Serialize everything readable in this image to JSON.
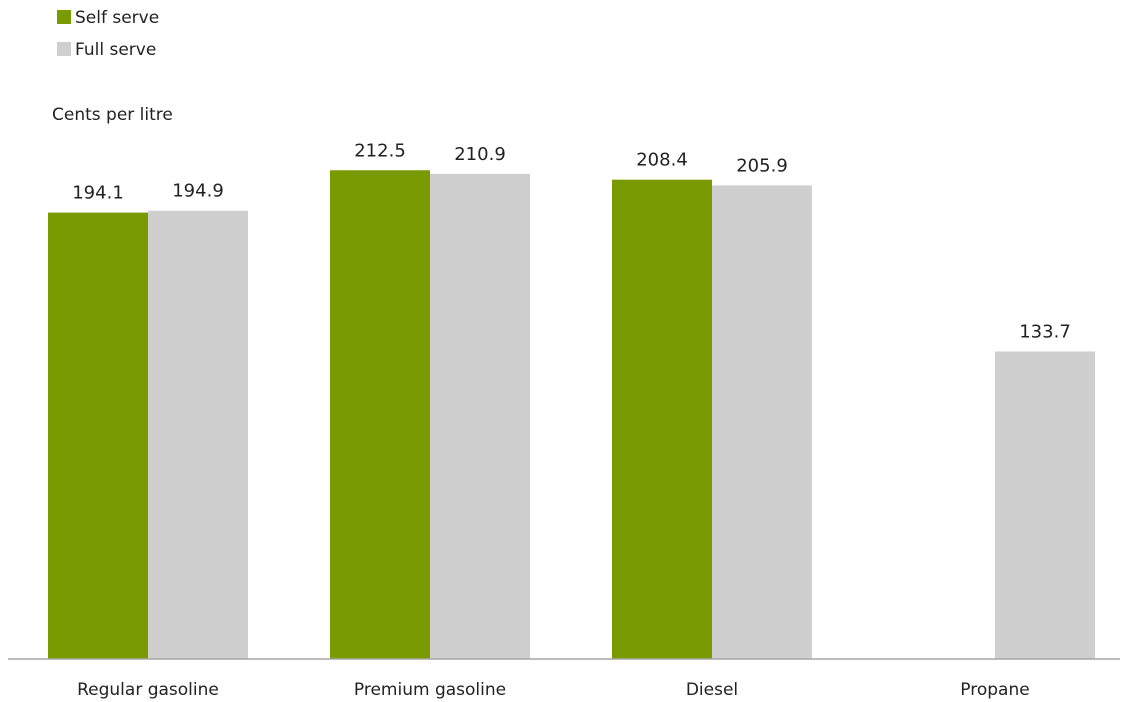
{
  "chart_data": {
    "type": "bar",
    "ylabel": "Cents per litre",
    "categories": [
      "Regular gasoline",
      "Premium gasoline",
      "Diesel",
      "Propane"
    ],
    "series": [
      {
        "name": "Self serve",
        "color": "#7a9a01",
        "values": [
          194.1,
          212.5,
          208.4,
          null
        ]
      },
      {
        "name": "Full serve",
        "color": "#d0cfcf",
        "values": [
          194.9,
          210.9,
          205.9,
          133.7
        ]
      }
    ],
    "value_labels": {
      "Self serve": [
        "194.1",
        "212.5",
        "208.4",
        null
      ],
      "Full serve": [
        "194.9",
        "210.9",
        "205.9",
        "133.7"
      ]
    },
    "ylim": [
      0,
      230
    ],
    "grid": false,
    "legend_position": "top-left",
    "axis_color": "#a6a6a6"
  }
}
